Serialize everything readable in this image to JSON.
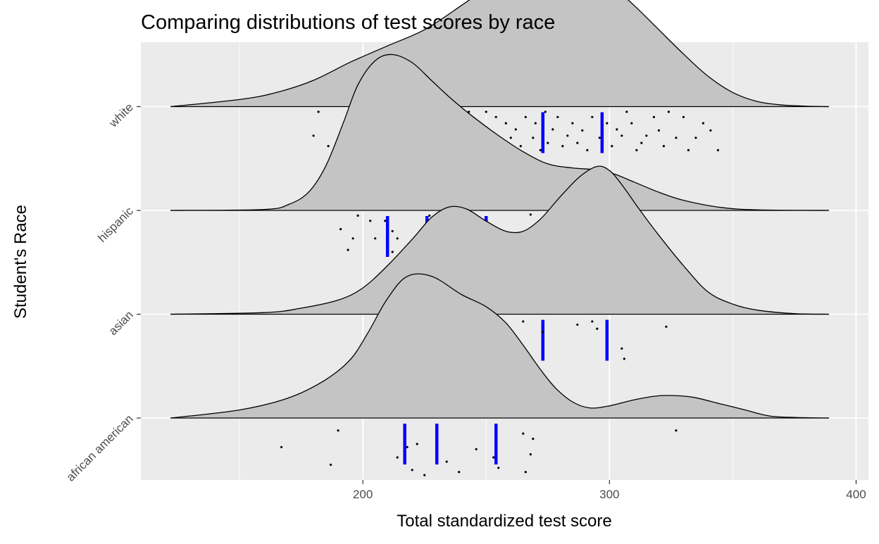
{
  "chart_data": {
    "type": "ridgeline",
    "title": "Comparing distributions of test scores by race",
    "xlabel": "Total standardized test score",
    "ylabel": "Student's Race",
    "xlim": [
      110,
      405
    ],
    "x_ticks": [
      200,
      300,
      400
    ],
    "x_tick_labels": [
      "200",
      "300",
      "400"
    ],
    "categories": [
      "african american",
      "asian",
      "hispanic",
      "white"
    ],
    "grid": true,
    "colors": {
      "panel_background": "#ebebeb",
      "grid": "#ffffff",
      "density_fill": "#c4c4c4",
      "density_line": "#000000",
      "quantile_line": "#0000ff",
      "point": "#000000"
    },
    "series": [
      {
        "category": "african american",
        "quantiles": [
          217,
          230,
          254
        ],
        "density": {
          "x": [
            122,
            150,
            170,
            185,
            195,
            202,
            210,
            218,
            228,
            240,
            250,
            258,
            265,
            272,
            278,
            285,
            292,
            300,
            310,
            320,
            328,
            335,
            345,
            355,
            365,
            375,
            389
          ],
          "height": [
            0,
            0.04,
            0.1,
            0.19,
            0.29,
            0.42,
            0.59,
            0.7,
            0.7,
            0.61,
            0.55,
            0.47,
            0.36,
            0.24,
            0.15,
            0.08,
            0.05,
            0.06,
            0.09,
            0.11,
            0.11,
            0.1,
            0.07,
            0.04,
            0.01,
            0.003,
            0
          ]
        },
        "points": [
          [
            167,
            -0.28
          ],
          [
            187,
            -0.45
          ],
          [
            190,
            -0.12
          ],
          [
            214,
            -0.38
          ],
          [
            218,
            -0.28
          ],
          [
            220,
            -0.5
          ],
          [
            222,
            -0.25
          ],
          [
            225,
            -0.55
          ],
          [
            234,
            -0.42
          ],
          [
            239,
            -0.52
          ],
          [
            246,
            -0.3
          ],
          [
            253,
            -0.38
          ],
          [
            255,
            -0.48
          ],
          [
            265,
            -0.15
          ],
          [
            266,
            -0.52
          ],
          [
            268,
            -0.35
          ],
          [
            269,
            -0.2
          ],
          [
            327,
            -0.12
          ]
        ]
      },
      {
        "category": "asian",
        "quantiles": [
          239,
          273,
          299
        ],
        "density": {
          "x": [
            122,
            160,
            175,
            190,
            200,
            210,
            220,
            228,
            235,
            242,
            250,
            258,
            265,
            272,
            280,
            288,
            295,
            300,
            305,
            312,
            320,
            330,
            340,
            350,
            360,
            375,
            389
          ],
          "height": [
            0,
            0.008,
            0.03,
            0.07,
            0.13,
            0.24,
            0.37,
            0.48,
            0.53,
            0.52,
            0.46,
            0.41,
            0.41,
            0.47,
            0.58,
            0.68,
            0.73,
            0.71,
            0.64,
            0.52,
            0.39,
            0.24,
            0.11,
            0.05,
            0.02,
            0.003,
            0
          ]
        },
        "points": [
          [
            211,
            -0.32
          ],
          [
            239,
            -0.2
          ],
          [
            240,
            -0.4
          ],
          [
            265,
            -0.07
          ],
          [
            273,
            -0.17
          ],
          [
            287,
            -0.1
          ],
          [
            293,
            -0.07
          ],
          [
            295,
            -0.14
          ],
          [
            305,
            -0.33
          ],
          [
            306,
            -0.43
          ],
          [
            323,
            -0.12
          ]
        ]
      },
      {
        "category": "hispanic",
        "quantiles": [
          210,
          226,
          250
        ],
        "density": {
          "x": [
            122,
            160,
            170,
            178,
            185,
            192,
            198,
            205,
            212,
            220,
            228,
            236,
            245,
            255,
            265,
            275,
            285,
            295,
            302,
            310,
            320,
            330,
            345,
            360,
            389
          ],
          "height": [
            0,
            0.005,
            0.03,
            0.09,
            0.22,
            0.43,
            0.62,
            0.74,
            0.77,
            0.73,
            0.64,
            0.55,
            0.46,
            0.37,
            0.29,
            0.23,
            0.21,
            0.2,
            0.18,
            0.14,
            0.09,
            0.05,
            0.015,
            0.003,
            0
          ]
        },
        "points": [
          [
            191,
            -0.18
          ],
          [
            194,
            -0.38
          ],
          [
            196,
            -0.27
          ],
          [
            198,
            -0.05
          ],
          [
            203,
            -0.1
          ],
          [
            205,
            -0.27
          ],
          [
            209,
            -0.1
          ],
          [
            212,
            -0.2
          ],
          [
            212,
            -0.4
          ],
          [
            214,
            -0.27
          ],
          [
            224,
            -0.32
          ],
          [
            225,
            -0.38
          ],
          [
            227,
            -0.05
          ],
          [
            238,
            -0.42
          ],
          [
            239,
            -0.08
          ],
          [
            240,
            -0.18
          ],
          [
            245,
            -0.38
          ],
          [
            247,
            -0.42
          ],
          [
            264,
            -0.25
          ],
          [
            266,
            -0.2
          ],
          [
            268,
            -0.04
          ],
          [
            291,
            -0.07
          ],
          [
            295,
            -0.22
          ],
          [
            312,
            -0.3
          ]
        ]
      },
      {
        "category": "white",
        "quantiles": [
          242,
          273,
          297
        ],
        "density": {
          "x": [
            122,
            150,
            165,
            180,
            195,
            210,
            225,
            240,
            255,
            265,
            272,
            278,
            285,
            292,
            300,
            310,
            320,
            330,
            340,
            350,
            360,
            370,
            380,
            389
          ],
          "height": [
            0,
            0.035,
            0.07,
            0.13,
            0.22,
            0.3,
            0.38,
            0.5,
            0.63,
            0.72,
            0.77,
            0.78,
            0.76,
            0.7,
            0.61,
            0.5,
            0.38,
            0.26,
            0.15,
            0.07,
            0.025,
            0.008,
            0.002,
            0
          ]
        },
        "points": [
          [
            180,
            -0.28
          ],
          [
            182,
            -0.05
          ],
          [
            186,
            -0.38
          ],
          [
            195,
            -0.1
          ],
          [
            198,
            -0.23
          ],
          [
            199,
            -0.1
          ],
          [
            200,
            -0.16
          ],
          [
            201,
            -0.28
          ],
          [
            203,
            -0.35
          ],
          [
            206,
            -0.42
          ],
          [
            208,
            -0.16
          ],
          [
            209,
            -0.1
          ],
          [
            209,
            -0.33
          ],
          [
            213,
            -0.3
          ],
          [
            215,
            -0.22
          ],
          [
            221,
            -0.42
          ],
          [
            222,
            -0.2
          ],
          [
            223,
            -0.05
          ],
          [
            225,
            -0.22
          ],
          [
            228,
            -0.32
          ],
          [
            230,
            -0.22
          ],
          [
            231,
            -0.1
          ],
          [
            234,
            -0.05
          ],
          [
            237,
            -0.28
          ],
          [
            240,
            -0.16
          ],
          [
            243,
            -0.05
          ],
          [
            245,
            -0.23
          ],
          [
            247,
            -0.3
          ],
          [
            248,
            -0.2
          ],
          [
            250,
            -0.05
          ],
          [
            252,
            -0.3
          ],
          [
            254,
            -0.1
          ],
          [
            256,
            -0.38
          ],
          [
            258,
            -0.16
          ],
          [
            260,
            -0.3
          ],
          [
            262,
            -0.22
          ],
          [
            264,
            -0.38
          ],
          [
            266,
            -0.1
          ],
          [
            269,
            -0.3
          ],
          [
            270,
            -0.16
          ],
          [
            272,
            -0.42
          ],
          [
            274,
            -0.05
          ],
          [
            275,
            -0.35
          ],
          [
            277,
            -0.22
          ],
          [
            279,
            -0.1
          ],
          [
            281,
            -0.38
          ],
          [
            283,
            -0.28
          ],
          [
            285,
            -0.16
          ],
          [
            287,
            -0.35
          ],
          [
            289,
            -0.23
          ],
          [
            291,
            -0.42
          ],
          [
            293,
            -0.1
          ],
          [
            296,
            -0.3
          ],
          [
            299,
            -0.16
          ],
          [
            301,
            -0.38
          ],
          [
            303,
            -0.22
          ],
          [
            305,
            -0.28
          ],
          [
            307,
            -0.05
          ],
          [
            309,
            -0.16
          ],
          [
            311,
            -0.42
          ],
          [
            313,
            -0.35
          ],
          [
            315,
            -0.28
          ],
          [
            318,
            -0.1
          ],
          [
            320,
            -0.23
          ],
          [
            322,
            -0.38
          ],
          [
            324,
            -0.05
          ],
          [
            327,
            -0.3
          ],
          [
            330,
            -0.1
          ],
          [
            332,
            -0.42
          ],
          [
            335,
            -0.3
          ],
          [
            338,
            -0.16
          ],
          [
            341,
            -0.23
          ],
          [
            344,
            -0.42
          ]
        ]
      }
    ]
  }
}
